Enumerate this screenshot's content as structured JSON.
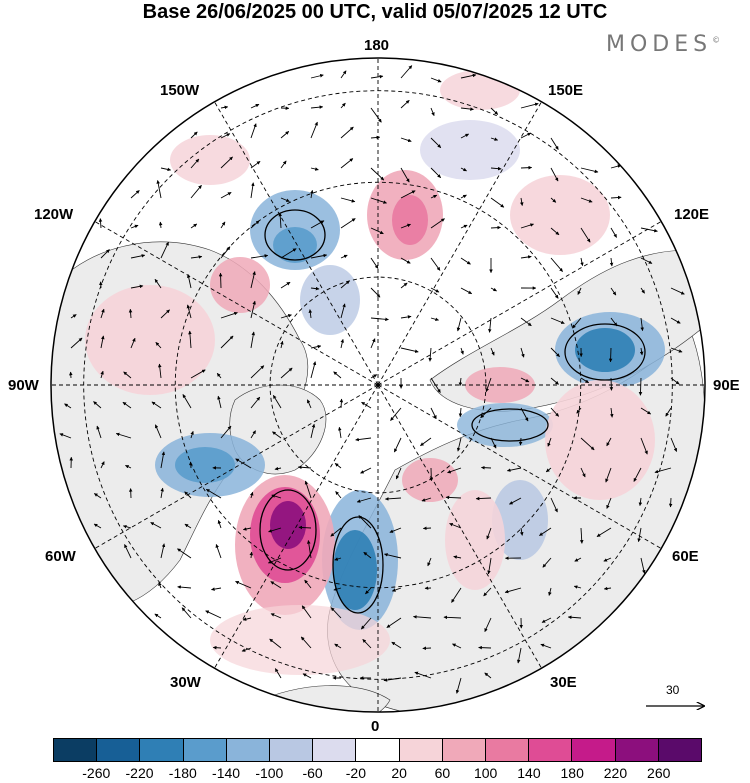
{
  "title": "Base 26/06/2025 00 UTC, valid 05/07/2025 12 UTC",
  "brand": "MODES",
  "brand_mark": "©",
  "longitude_labels": {
    "top": "180",
    "bottom": "0",
    "left": "90W",
    "right": "90E",
    "upper_left": "150W",
    "upper_right": "150E",
    "mid_upper_left": "120W",
    "mid_upper_right": "120E",
    "lower_left": "60W",
    "lower_right": "60E",
    "bottom_left": "30W",
    "bottom_right": "30E"
  },
  "vector_scale": {
    "value": "30"
  },
  "colorbar": {
    "colors": [
      "#0b3d63",
      "#175f96",
      "#2f7fb5",
      "#5a9ccc",
      "#8ab4da",
      "#b9c8e3",
      "#dcdcee",
      "#ffffff",
      "#f6d4d9",
      "#f0a9b9",
      "#e97aa1",
      "#df4c95",
      "#c51b8a",
      "#8c0f7d",
      "#5a0a6a"
    ],
    "ticks": [
      "-260",
      "-220",
      "-180",
      "-140",
      "-100",
      "-60",
      "-20",
      "20",
      "60",
      "100",
      "140",
      "180",
      "220",
      "260"
    ]
  },
  "colors": {
    "land": "#ececec",
    "ocean": "#ffffff"
  },
  "map_features": {
    "anomalies": [
      {
        "name": "positive-anomaly-north-atlantic",
        "value": 240
      },
      {
        "name": "negative-anomaly-western-europe",
        "value": -180
      },
      {
        "name": "negative-anomaly-siberia",
        "value": -150
      },
      {
        "name": "negative-anomaly-north-pacific",
        "value": -140
      },
      {
        "name": "positive-anomaly-bering",
        "value": 110
      },
      {
        "name": "negative-anomaly-canada",
        "value": -130
      }
    ]
  }
}
